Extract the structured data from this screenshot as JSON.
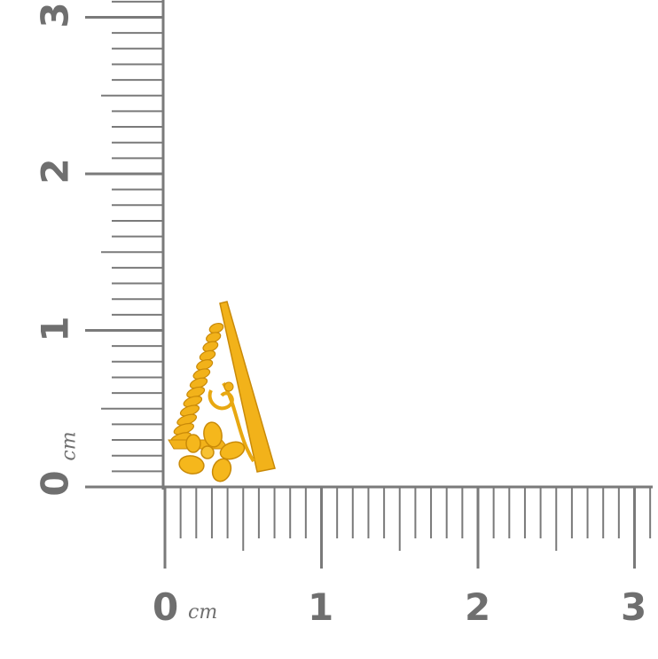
{
  "scale": {
    "unit": "cm",
    "x_labels": [
      "0",
      "1",
      "2",
      "3"
    ],
    "y_labels": [
      "0",
      "1",
      "2",
      "3"
    ],
    "subdivisions_per_unit": 10
  },
  "colors": {
    "ruler": "#7a7a7a",
    "label": "#6f6f6f",
    "gold": "#f2b21a",
    "gold_dark": "#c98a08",
    "background": "#ffffff"
  },
  "product": {
    "name_icon": "gold-triangle-pendant-icon"
  }
}
